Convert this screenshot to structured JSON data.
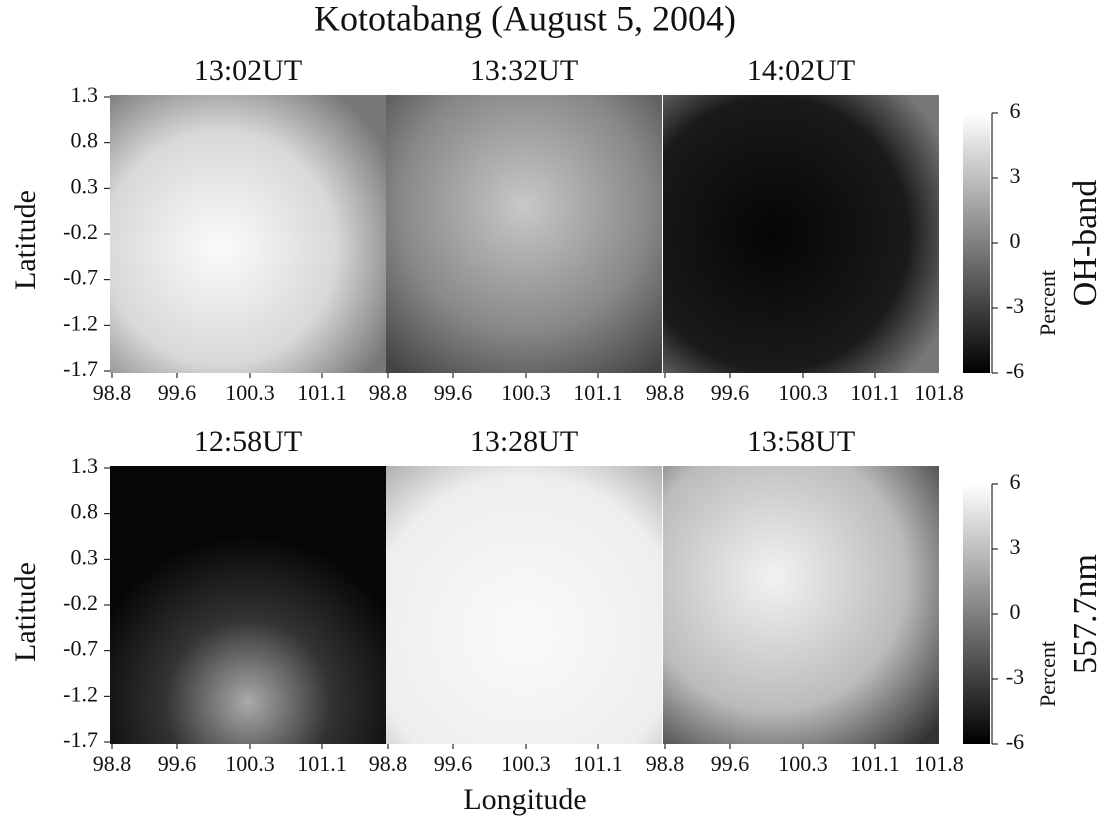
{
  "title": "Kototabang (August 5, 2004)",
  "y_axis_label": "Latitude",
  "x_axis_label": "Longitude",
  "y_ticks": [
    "1.3",
    "0.8",
    "0.3",
    "-0.2",
    "-0.7",
    "-1.2",
    "-1.7"
  ],
  "x_ticks": [
    "98.8",
    "99.6",
    "100.3",
    "101.1"
  ],
  "x_tick_last": "101.8",
  "colorbar": {
    "label": "Percent",
    "ticks": [
      "6",
      "3",
      "0",
      "-3",
      "-6"
    ]
  },
  "rows": [
    {
      "band": "OH-band",
      "panels": [
        "13:02UT",
        "13:32UT",
        "14:02UT"
      ]
    },
    {
      "band": "557.7nm",
      "panels": [
        "12:58UT",
        "13:28UT",
        "13:58UT"
      ]
    }
  ]
}
